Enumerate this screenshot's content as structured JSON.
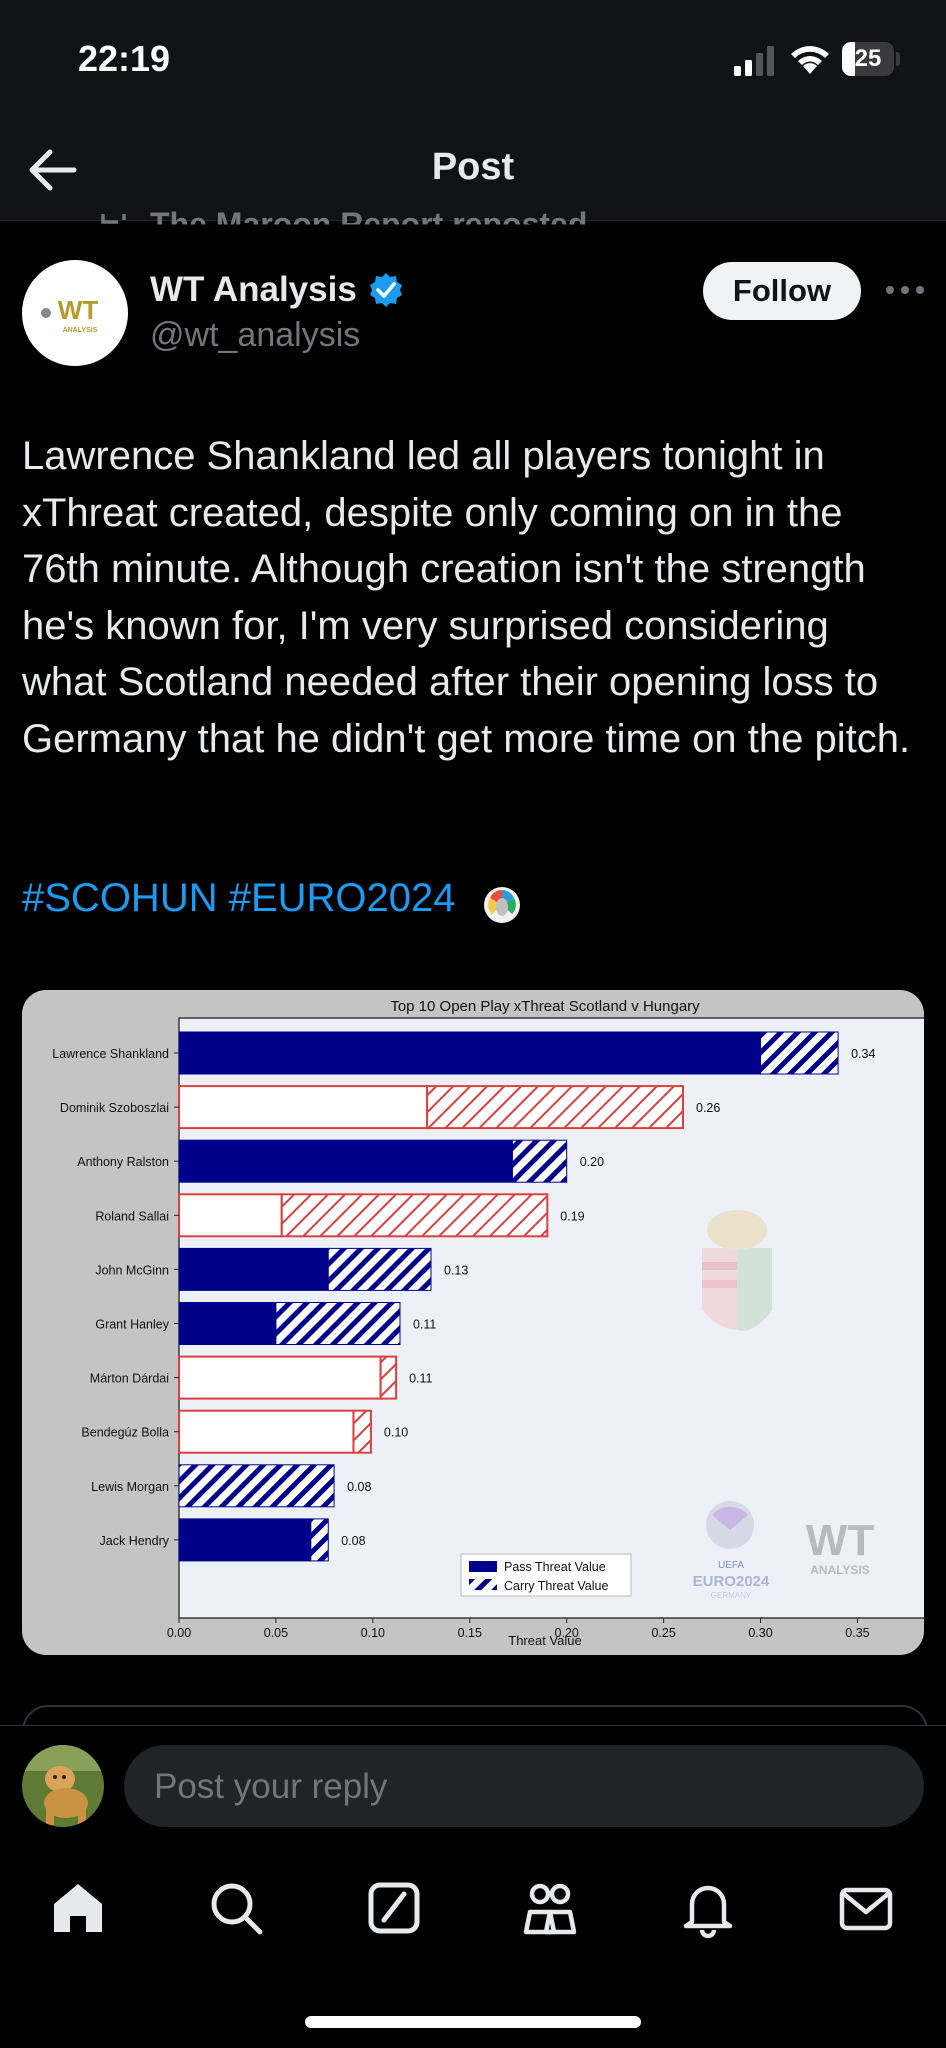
{
  "status_bar": {
    "time": "22:19",
    "battery": "25"
  },
  "nav": {
    "title": "Post"
  },
  "repost": {
    "label": "The Maroon Report reposted"
  },
  "author": {
    "name": "WT Analysis",
    "handle": "@wt_analysis",
    "avatar_text": "WT",
    "avatar_subtext": "ANALYSIS"
  },
  "follow_label": "Follow",
  "tweet": {
    "text": "Lawrence Shankland led all players tonight in xThreat created, despite only coming on in the 76th minute. Although creation isn't the strength he's known for, I'm very surprised considering what Scotland needed after their opening loss to Germany that he didn't get more time on the pitch.",
    "hashtags": "#SCOHUN #EURO2024"
  },
  "chart_data": {
    "type": "bar",
    "orientation": "horizontal",
    "stacked": true,
    "title": "Top 10 Open Play xThreat Scotland v Hungary",
    "xlabel": "Threat Value",
    "ylabel": "",
    "xlim": [
      0,
      0.39
    ],
    "xticks": [
      "0.00",
      "0.05",
      "0.10",
      "0.15",
      "0.20",
      "0.25",
      "0.30",
      "0.35"
    ],
    "categories": [
      "Lawrence Shankland",
      "Dominik Szoboszlai",
      "Anthony Ralston",
      "Roland Sallai",
      "John McGinn",
      "Grant Hanley",
      "Márton Dárdai",
      "Bendegúz Bolla",
      "Lewis Morgan",
      "Jack Hendry"
    ],
    "teams": [
      "Scotland",
      "Hungary",
      "Scotland",
      "Hungary",
      "Scotland",
      "Scotland",
      "Hungary",
      "Hungary",
      "Scotland",
      "Scotland"
    ],
    "team_colors": {
      "Scotland": "#00008b",
      "Hungary": "#d94040"
    },
    "series": [
      {
        "name": "Pass Threat Value",
        "values": [
          0.3,
          0.128,
          0.172,
          0.053,
          0.077,
          0.05,
          0.104,
          0.09,
          0.0,
          0.068
        ]
      },
      {
        "name": "Carry Threat Value",
        "values": [
          0.04,
          0.132,
          0.028,
          0.137,
          0.053,
          0.064,
          0.008,
          0.009,
          0.08,
          0.009
        ]
      }
    ],
    "data_labels": [
      "0.34",
      "0.26",
      "0.20",
      "0.19",
      "0.13",
      "0.11",
      "0.11",
      "0.10",
      "0.08",
      "0.08"
    ],
    "legend_position": "bottom-center",
    "watermark": {
      "euro": "EURO2024",
      "euro_sub": "GERMANY",
      "uefa": "UEFA",
      "wt": "WT",
      "wt_sub": "ANALYSIS"
    },
    "grid": false
  },
  "reply": {
    "placeholder": "Post your reply"
  },
  "tabs": [
    "home-icon",
    "search-icon",
    "grok-icon",
    "communities-icon",
    "notifications-icon",
    "messages-icon"
  ]
}
